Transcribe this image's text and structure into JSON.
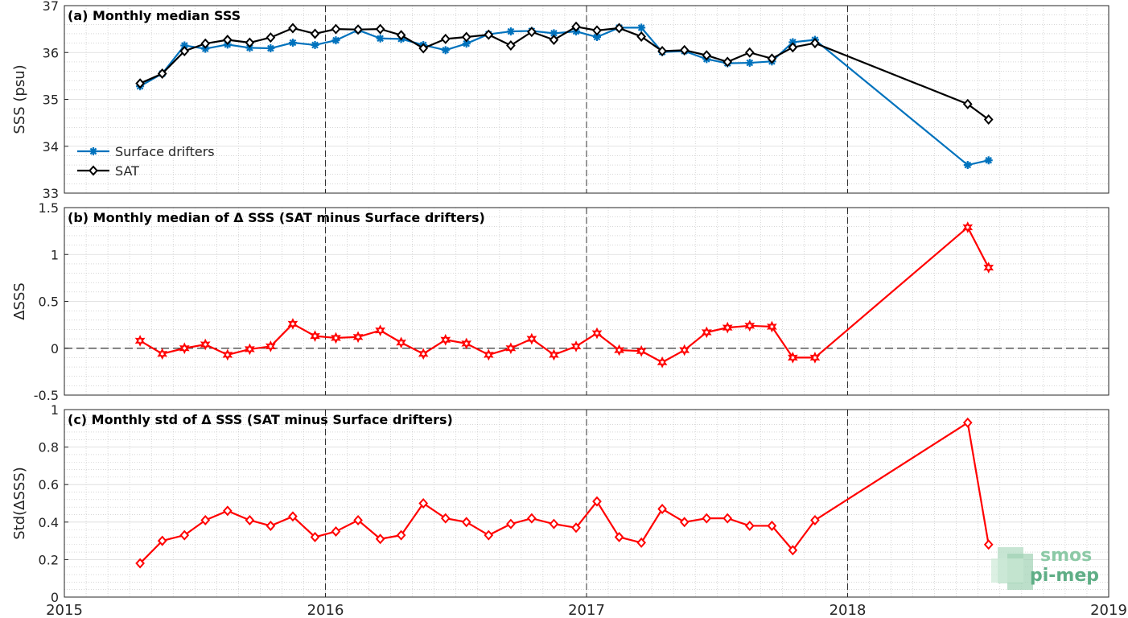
{
  "x_axis": {
    "range": [
      2015,
      2019
    ],
    "ticks": [
      2015,
      2016,
      2017,
      2018,
      2019
    ],
    "tick_labels": [
      "2015",
      "2016",
      "2017",
      "2018",
      "2019"
    ],
    "year_dividers": [
      2016,
      2017,
      2018
    ]
  },
  "colors": {
    "drifters": "#0072BD",
    "sat": "#000000",
    "delta": "#FF0000",
    "grid": "#d9d9d9",
    "minor_grid": "#bfbfbf",
    "divider": "#333333"
  },
  "logo": {
    "line1": "smos",
    "line2": "pi-mep"
  },
  "chart_data": [
    {
      "type": "line",
      "title": "(a) Monthly median SSS",
      "ylabel": "SSS (psu)",
      "xlim": [
        2015,
        2019
      ],
      "ylim": [
        33,
        37
      ],
      "yticks": [
        33,
        34,
        35,
        36,
        37
      ],
      "ytick_labels": [
        "33",
        "34",
        "35",
        "36",
        "37"
      ],
      "grid": true,
      "legend": "lower-left",
      "series": [
        {
          "name": "Surface drifters",
          "marker": "star",
          "x": [
            2015.29,
            2015.375,
            2015.46,
            2015.54,
            2015.625,
            2015.71,
            2015.79,
            2015.875,
            2015.96,
            2016.04,
            2016.125,
            2016.21,
            2016.29,
            2016.375,
            2016.46,
            2016.54,
            2016.625,
            2016.71,
            2016.79,
            2016.875,
            2016.96,
            2017.04,
            2017.125,
            2017.21,
            2017.29,
            2017.375,
            2017.46,
            2017.54,
            2017.625,
            2017.71,
            2017.79,
            2017.875,
            2018.46,
            2018.54
          ],
          "y": [
            35.28,
            35.55,
            36.15,
            36.08,
            36.17,
            36.1,
            36.09,
            36.21,
            36.16,
            36.26,
            36.48,
            36.3,
            36.29,
            36.16,
            36.05,
            36.19,
            36.39,
            36.45,
            36.46,
            36.41,
            36.45,
            36.33,
            36.53,
            36.53,
            36.01,
            36.03,
            35.86,
            35.77,
            35.78,
            35.81,
            36.22,
            36.27,
            33.6,
            33.7
          ]
        },
        {
          "name": "SAT",
          "marker": "diamond",
          "x": [
            2015.29,
            2015.375,
            2015.46,
            2015.54,
            2015.625,
            2015.71,
            2015.79,
            2015.875,
            2015.96,
            2016.04,
            2016.125,
            2016.21,
            2016.29,
            2016.375,
            2016.46,
            2016.54,
            2016.625,
            2016.71,
            2016.79,
            2016.875,
            2016.96,
            2017.04,
            2017.125,
            2017.21,
            2017.29,
            2017.375,
            2017.46,
            2017.54,
            2017.625,
            2017.71,
            2017.79,
            2017.875,
            2018.46,
            2018.54
          ],
          "y": [
            35.34,
            35.55,
            36.03,
            36.19,
            36.27,
            36.21,
            36.32,
            36.52,
            36.4,
            36.5,
            36.49,
            36.5,
            36.37,
            36.09,
            36.29,
            36.33,
            36.38,
            36.15,
            36.44,
            36.27,
            36.55,
            36.47,
            36.52,
            36.34,
            36.03,
            36.05,
            35.94,
            35.8,
            36.0,
            35.87,
            36.11,
            36.2,
            34.9,
            34.57
          ]
        }
      ]
    },
    {
      "type": "line",
      "title": "(b) Monthly median of Δ SSS (SAT minus Surface drifters)",
      "ylabel": "ΔSSS",
      "xlim": [
        2015,
        2019
      ],
      "ylim": [
        -0.5,
        1.5
      ],
      "yticks": [
        -0.5,
        0,
        0.5,
        1,
        1.5
      ],
      "ytick_labels": [
        "-0.5",
        "0",
        "0.5",
        "1",
        "1.5"
      ],
      "zero_line": true,
      "grid": true,
      "series": [
        {
          "marker": "hexagram",
          "x": [
            2015.29,
            2015.375,
            2015.46,
            2015.54,
            2015.625,
            2015.71,
            2015.79,
            2015.875,
            2015.96,
            2016.04,
            2016.125,
            2016.21,
            2016.29,
            2016.375,
            2016.46,
            2016.54,
            2016.625,
            2016.71,
            2016.79,
            2016.875,
            2016.96,
            2017.04,
            2017.125,
            2017.21,
            2017.29,
            2017.375,
            2017.46,
            2017.54,
            2017.625,
            2017.71,
            2017.79,
            2017.875,
            2018.46,
            2018.54
          ],
          "y": [
            0.08,
            -0.06,
            0.0,
            0.04,
            -0.07,
            -0.01,
            0.02,
            0.26,
            0.13,
            0.11,
            0.12,
            0.19,
            0.06,
            -0.06,
            0.09,
            0.05,
            -0.07,
            0.0,
            0.1,
            -0.07,
            0.02,
            0.16,
            -0.02,
            -0.03,
            -0.15,
            -0.02,
            0.17,
            0.22,
            0.24,
            0.23,
            -0.1,
            -0.1,
            1.29,
            0.86
          ]
        }
      ]
    },
    {
      "type": "line",
      "title": "(c) Monthly std of Δ SSS (SAT minus Surface drifters)",
      "ylabel": "Std(ΔSSS)",
      "xlim": [
        2015,
        2019
      ],
      "ylim": [
        0,
        1
      ],
      "yticks": [
        0,
        0.2,
        0.4,
        0.6,
        0.8,
        1
      ],
      "ytick_labels": [
        "0",
        "0.2",
        "0.4",
        "0.6",
        "0.8",
        "1"
      ],
      "grid": true,
      "series": [
        {
          "marker": "diamond",
          "x": [
            2015.29,
            2015.375,
            2015.46,
            2015.54,
            2015.625,
            2015.71,
            2015.79,
            2015.875,
            2015.96,
            2016.04,
            2016.125,
            2016.21,
            2016.29,
            2016.375,
            2016.46,
            2016.54,
            2016.625,
            2016.71,
            2016.79,
            2016.875,
            2016.96,
            2017.04,
            2017.125,
            2017.21,
            2017.29,
            2017.375,
            2017.46,
            2017.54,
            2017.625,
            2017.71,
            2017.79,
            2017.875,
            2018.46,
            2018.54
          ],
          "y": [
            0.18,
            0.3,
            0.33,
            0.41,
            0.46,
            0.41,
            0.38,
            0.43,
            0.32,
            0.35,
            0.41,
            0.31,
            0.33,
            0.5,
            0.42,
            0.4,
            0.33,
            0.39,
            0.42,
            0.39,
            0.37,
            0.51,
            0.32,
            0.29,
            0.47,
            0.4,
            0.42,
            0.42,
            0.38,
            0.38,
            0.25,
            0.41,
            0.93,
            0.28
          ]
        }
      ]
    }
  ]
}
